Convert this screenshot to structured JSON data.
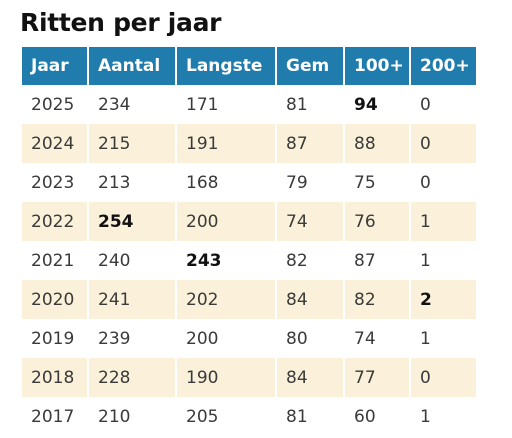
{
  "title": "Ritten per jaar",
  "table": {
    "headers": [
      "Jaar",
      "Aantal",
      "Langste",
      "Gem",
      "100+",
      "200+"
    ],
    "rows": [
      [
        "2025",
        "234",
        "171",
        "81",
        "94",
        "0"
      ],
      [
        "2024",
        "215",
        "191",
        "87",
        "88",
        "0"
      ],
      [
        "2023",
        "213",
        "168",
        "79",
        "75",
        "0"
      ],
      [
        "2022",
        "254",
        "200",
        "74",
        "76",
        "1"
      ],
      [
        "2021",
        "240",
        "243",
        "82",
        "87",
        "1"
      ],
      [
        "2020",
        "241",
        "202",
        "84",
        "82",
        "2"
      ],
      [
        "2019",
        "239",
        "200",
        "80",
        "74",
        "1"
      ],
      [
        "2018",
        "228",
        "190",
        "84",
        "77",
        "0"
      ],
      [
        "2017",
        "210",
        "205",
        "81",
        "60",
        "1"
      ]
    ],
    "bold_cells": [
      {
        "row": 0,
        "col": 4
      },
      {
        "row": 3,
        "col": 1
      },
      {
        "row": 4,
        "col": 2
      },
      {
        "row": 5,
        "col": 5
      }
    ]
  },
  "colors": {
    "header_bg": "#1f7cad",
    "header_text": "#ffffff",
    "stripe_bg": "#fbf1da",
    "row_bg": "#ffffff"
  }
}
